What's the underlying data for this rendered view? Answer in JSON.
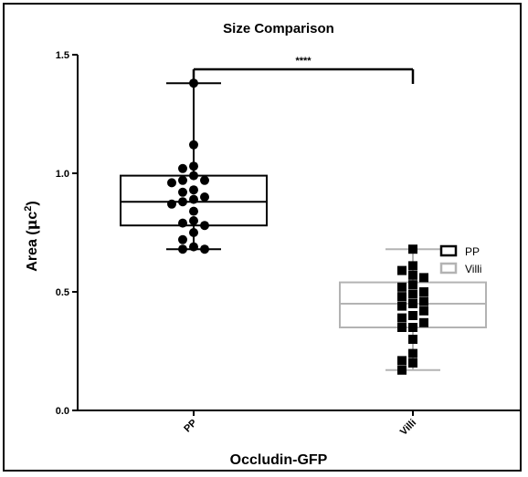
{
  "chart_data": {
    "type": "box",
    "title": "Size Comparison",
    "xlabel": "Occludin-GFP",
    "ylabel_main": "Area (",
    "ylabel_mu": "μ",
    "ylabel_unit": "c",
    "ylabel_sup": "2",
    "ylabel_close": ")",
    "ylim": [
      0,
      1.5
    ],
    "yticks": [
      {
        "value": 0.0,
        "label": "0.0"
      },
      {
        "value": 0.5,
        "label": "0.5"
      },
      {
        "value": 1.0,
        "label": "1.0"
      },
      {
        "value": 1.5,
        "label": "1.5"
      }
    ],
    "significance": "****",
    "legend_position": "right",
    "series": [
      {
        "name": "PP",
        "category": "PP",
        "box_color": "#000000",
        "marker": "circle",
        "min": 0.68,
        "q1": 0.78,
        "median": 0.88,
        "q3": 0.99,
        "max": 1.38,
        "points": [
          1.38,
          1.12,
          1.03,
          1.02,
          0.99,
          0.97,
          0.97,
          0.96,
          0.93,
          0.92,
          0.9,
          0.89,
          0.88,
          0.87,
          0.84,
          0.8,
          0.79,
          0.78,
          0.75,
          0.72,
          0.69,
          0.68,
          0.68
        ]
      },
      {
        "name": "Villi",
        "category": "Villi",
        "box_color": "#b3b3b3",
        "marker": "square",
        "min": 0.17,
        "q1": 0.35,
        "median": 0.45,
        "q3": 0.54,
        "max": 0.68,
        "points": [
          0.68,
          0.61,
          0.59,
          0.57,
          0.56,
          0.53,
          0.52,
          0.5,
          0.49,
          0.48,
          0.46,
          0.45,
          0.44,
          0.42,
          0.4,
          0.39,
          0.37,
          0.35,
          0.35,
          0.3,
          0.24,
          0.21,
          0.2,
          0.17
        ]
      }
    ]
  }
}
